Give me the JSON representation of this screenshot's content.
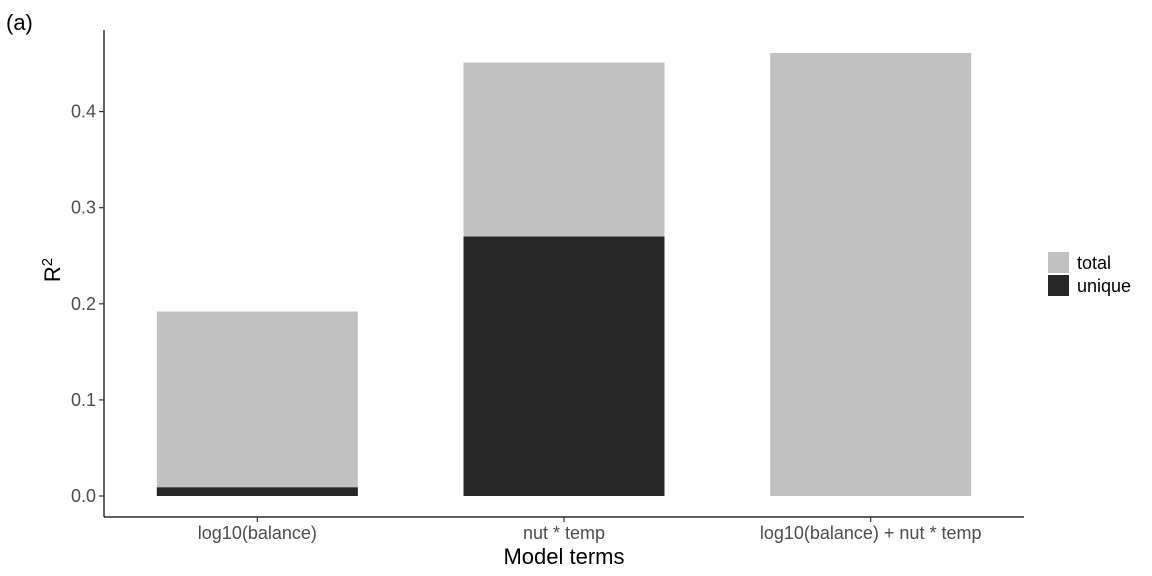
{
  "chart_data": {
    "type": "bar",
    "panel_label": "(a)",
    "categories": [
      "log10(balance)",
      "nut * temp",
      "log10(balance) + nut * temp"
    ],
    "series": [
      {
        "name": "total",
        "values": [
          0.192,
          0.451,
          0.461
        ],
        "color": "#c1c1c1"
      },
      {
        "name": "unique",
        "values": [
          0.009,
          0.27,
          null
        ],
        "color": "#272727"
      }
    ],
    "xlabel": "Model terms",
    "ylabel": "R",
    "ylabel_superscript": "2",
    "ylim": [
      0,
      0.48
    ],
    "yticks": [
      "0.0",
      "0.1",
      "0.2",
      "0.3",
      "0.4"
    ],
    "grid": false,
    "legend_placement": "right"
  }
}
